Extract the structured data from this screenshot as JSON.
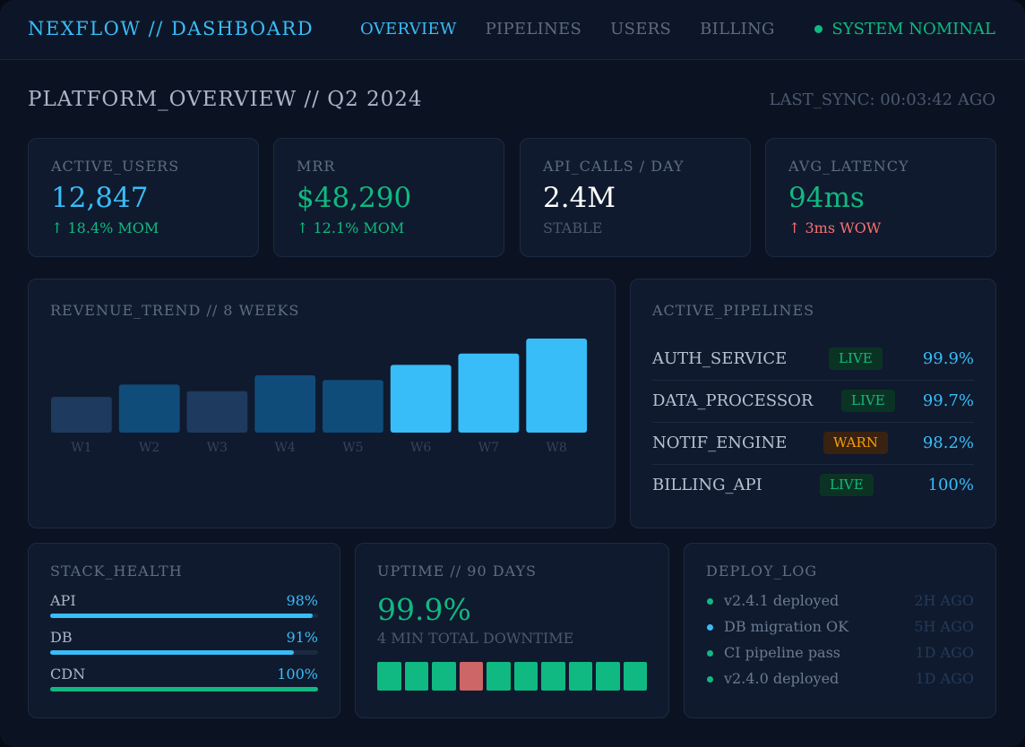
{
  "header": {
    "brand": "NEXFLOW // DASHBOARD",
    "nav": [
      "OVERVIEW",
      "PIPELINES",
      "USERS",
      "BILLING"
    ],
    "active_nav": "OVERVIEW",
    "status": "SYSTEM NOMINAL",
    "status_color": "#10b981"
  },
  "page": {
    "title": "PLATFORM_OVERVIEW // Q2 2024",
    "last_sync": "LAST_SYNC: 00:03:42 AGO"
  },
  "kpis": [
    {
      "label": "ACTIVE_USERS",
      "value": "12,847",
      "sub": "↑ 18.4% MOM",
      "value_color": "blue",
      "sub_color": "green"
    },
    {
      "label": "MRR",
      "value": "$48,290",
      "sub": "↑ 12.1% MOM",
      "value_color": "green",
      "sub_color": "green"
    },
    {
      "label": "API_CALLS / DAY",
      "value": "2.4M",
      "sub": "STABLE",
      "value_color": "white",
      "sub_color": "gray"
    },
    {
      "label": "AVG_LATENCY",
      "value": "94ms",
      "sub": "↑ 3ms WOW",
      "value_color": "green",
      "sub_color": "red"
    }
  ],
  "revenue": {
    "label": "REVENUE_TREND // 8 WEEKS"
  },
  "chart_data": {
    "type": "bar",
    "title": "REVENUE_TREND // 8 WEEKS",
    "categories": [
      "W1",
      "W2",
      "W3",
      "W4",
      "W5",
      "W6",
      "W7",
      "W8"
    ],
    "values": [
      38,
      51,
      44,
      61,
      56,
      72,
      84,
      100
    ],
    "ylim": [
      0,
      100
    ],
    "colors": [
      "#1e3a5f",
      "#0f4c7a",
      "#1e3a5f",
      "#0f4c7a",
      "#0f4c7a",
      "#38bdf8",
      "#38bdf8",
      "#38bdf8"
    ],
    "grid": false,
    "xlabel": "",
    "ylabel": ""
  },
  "pipelines": {
    "label": "ACTIVE_PIPELINES",
    "items": [
      {
        "name": "AUTH_SERVICE",
        "status": "LIVE",
        "value": "99.9%"
      },
      {
        "name": "DATA_PROCESSOR",
        "status": "LIVE",
        "value": "99.7%"
      },
      {
        "name": "NOTIF_ENGINE",
        "status": "WARN",
        "value": "98.2%"
      },
      {
        "name": "BILLING_API",
        "status": "LIVE",
        "value": "100%"
      }
    ]
  },
  "stack_health": {
    "label": "STACK_HEALTH",
    "items": [
      {
        "name": "API",
        "value": "98%",
        "fraction": 0.98,
        "color": "#38bdf8"
      },
      {
        "name": "DB",
        "value": "91%",
        "fraction": 0.91,
        "color": "#38bdf8"
      },
      {
        "name": "CDN",
        "value": "100%",
        "fraction": 1.0,
        "color": "#10b981"
      }
    ]
  },
  "uptime": {
    "label": "UPTIME // 90 DAYS",
    "value": "99.9%",
    "sub": "4 MIN TOTAL DOWNTIME",
    "blocks": [
      "ok",
      "ok",
      "ok",
      "incident",
      "ok",
      "ok",
      "ok",
      "ok",
      "ok",
      "ok"
    ],
    "ok_color": "#10b981",
    "incident_color": "#cd6666"
  },
  "deploy_log": {
    "label": "DEPLOY_LOG",
    "items": [
      {
        "text": "v2.4.1 deployed",
        "time": "2H AGO",
        "color": "#10b981"
      },
      {
        "text": "DB migration OK",
        "time": "5H AGO",
        "color": "#38bdf8"
      },
      {
        "text": "CI pipeline pass",
        "time": "1D AGO",
        "color": "#10b981"
      },
      {
        "text": "v2.4.0 deployed",
        "time": "1D AGO",
        "color": "#10b981"
      }
    ]
  }
}
